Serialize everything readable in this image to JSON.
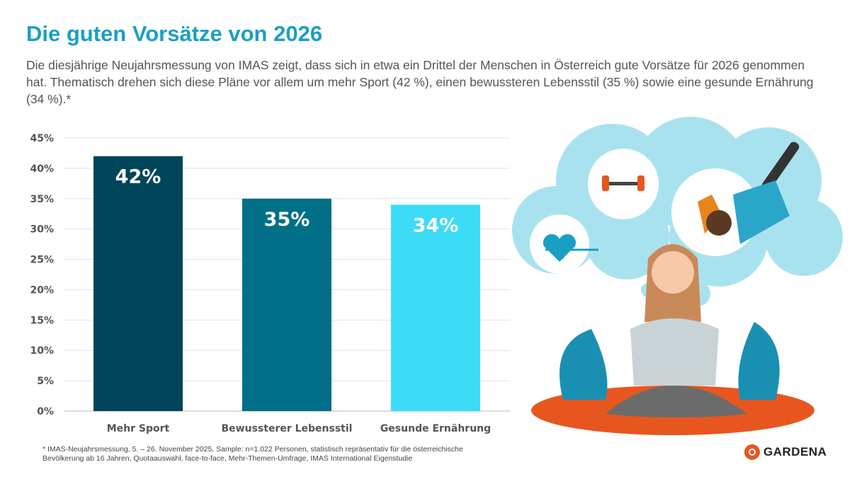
{
  "title": "Die guten Vorsätze von 2026",
  "subtitle": "Die diesjährige Neujahrsmessung von IMAS zeigt, dass sich in etwa ein Drittel der Menschen in Österreich gute Vorsätze für 2026 genommen hat. Thematisch drehen sich diese Pläne vor allem um mehr Sport (42 %), einen bewussteren Lebensstil (35 %) sowie eine gesunde Ernährung (34 %).*",
  "footnote": [
    "* IMAS-Neujahrsmessung, 5. – 26. November 2025, Sample: n=1.022 Personen, statistisch repräsentativ für die österreichische",
    "Bevölkerung ab 16 Jahren, Quotaauswahl, face-to-face, Mehr-Themen-Umfrage, IMAS International Eigenstudie"
  ],
  "logo": "GARDENA",
  "chart_data": {
    "type": "bar",
    "categories": [
      "Mehr Sport",
      "Bewussterer Lebensstil",
      "Gesunde Ernährung"
    ],
    "values": [
      42,
      35,
      34
    ],
    "data_labels": [
      "42%",
      "35%",
      "34%"
    ],
    "colors": [
      "#00455a",
      "#006f87",
      "#3cdcf7"
    ],
    "ylim": [
      0,
      45
    ],
    "yticks": [
      "0%",
      "5%",
      "10%",
      "15%",
      "20%",
      "25%",
      "30%",
      "35%",
      "40%",
      "45%"
    ],
    "grid": true,
    "xlabel": "",
    "ylabel": ""
  }
}
